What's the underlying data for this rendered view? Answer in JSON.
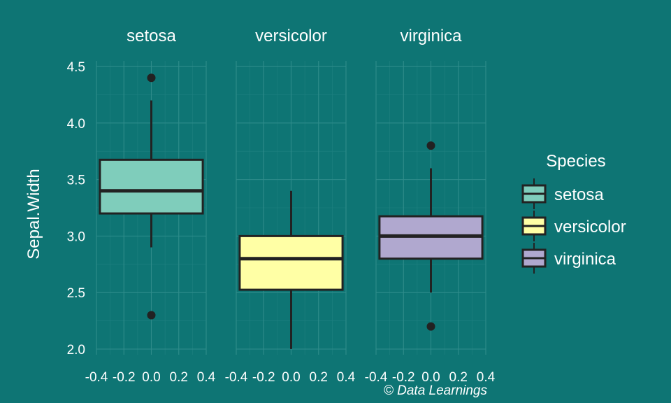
{
  "chart_data": {
    "type": "boxplot",
    "facets": [
      "setosa",
      "versicolor",
      "virginica"
    ],
    "ylabel": "Sepal.Width",
    "ylim": [
      1.95,
      4.55
    ],
    "y_ticks": [
      "2.0",
      "2.5",
      "3.0",
      "3.5",
      "4.0",
      "4.5"
    ],
    "xlim": [
      -0.4,
      0.4
    ],
    "x_ticks": [
      "-0.4",
      "-0.2",
      "0.0",
      "0.2",
      "0.4"
    ],
    "grid": true,
    "legend": {
      "title": "Species",
      "position": "right",
      "entries": [
        "setosa",
        "versicolor",
        "virginica"
      ]
    },
    "series": [
      {
        "name": "setosa",
        "color": "#7fcdbb",
        "whisker_low": 2.9,
        "q1": 3.2,
        "median": 3.4,
        "q3": 3.675,
        "whisker_high": 4.2,
        "outliers": [
          2.3,
          4.4
        ]
      },
      {
        "name": "versicolor",
        "color": "#ffffa5",
        "whisker_low": 2.0,
        "q1": 2.525,
        "median": 2.8,
        "q3": 3.0,
        "whisker_high": 3.4,
        "outliers": []
      },
      {
        "name": "virginica",
        "color": "#b0a8cf",
        "whisker_low": 2.5,
        "q1": 2.8,
        "median": 3.0,
        "q3": 3.175,
        "whisker_high": 3.6,
        "outliers": [
          2.2,
          3.8
        ]
      }
    ],
    "caption": "© Data Learnings"
  },
  "colors": {
    "background": "#0e7574",
    "outline": "#222222",
    "text": "#ffffff"
  }
}
